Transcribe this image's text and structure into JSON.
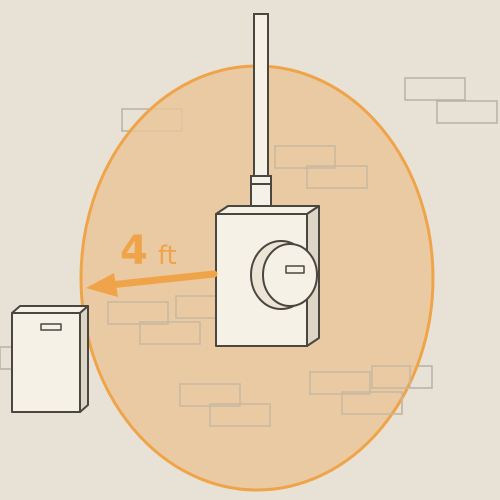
{
  "diagram": {
    "distance_label": {
      "value": "4",
      "unit": "ft"
    },
    "colors": {
      "background": "#e8e2d6",
      "accent_orange": "#f0a449",
      "zone_fill": "#e9c59a",
      "box_fill": "#f6f1e6",
      "outline": "#4a4640",
      "brick_stroke": "#b6b1a8"
    },
    "objects": [
      "electric-meter",
      "conduit-pipe",
      "clearance-zone",
      "distance-arrow",
      "nearby-box"
    ]
  }
}
